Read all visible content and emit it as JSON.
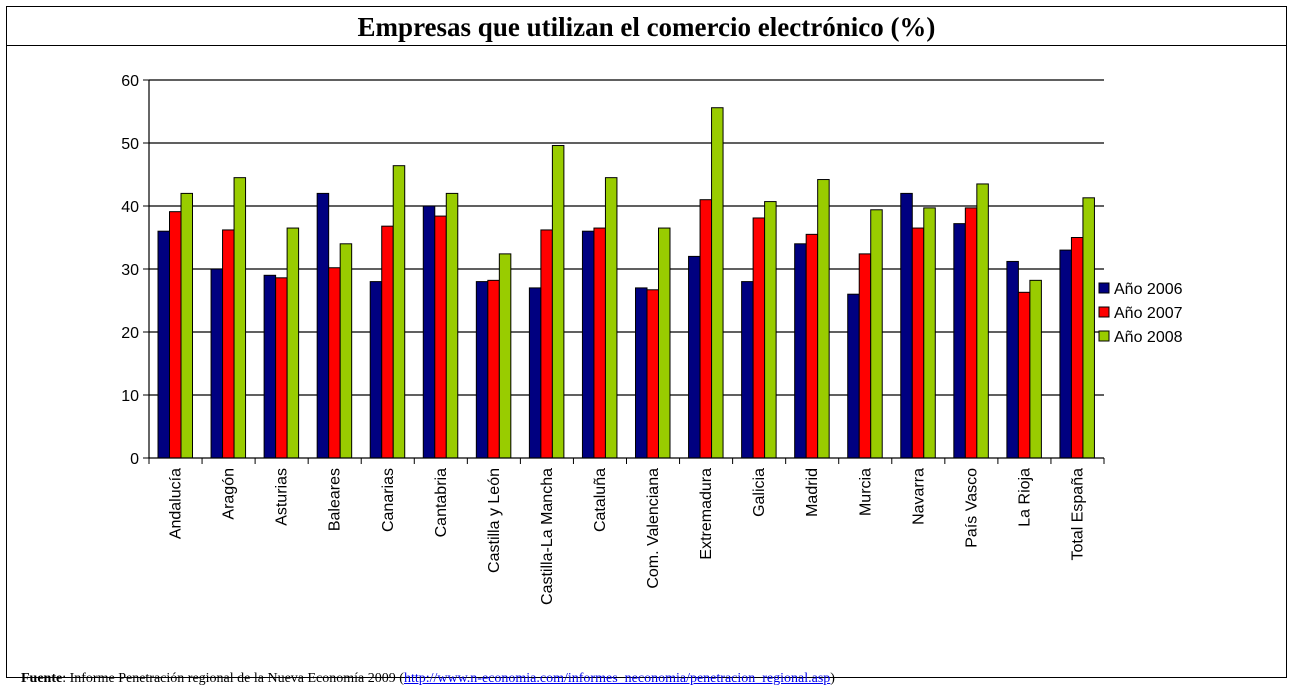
{
  "chart_data": {
    "type": "bar",
    "title": "Empresas que utilizan el comercio electrónico (%)",
    "xlabel": "",
    "ylabel": "",
    "ylim": [
      0,
      60
    ],
    "yticks": [
      0,
      10,
      20,
      30,
      40,
      50,
      60
    ],
    "grid": true,
    "legend_position": "right",
    "categories": [
      "Andalucía",
      "Aragón",
      "Asturias",
      "Baleares",
      "Canarias",
      "Cantabria",
      "Castilla y León",
      "Castilla-La Mancha",
      "Cataluña",
      "Com. Valenciana",
      "Extremadura",
      "Galicia",
      "Madrid",
      "Murcia",
      "Navarra",
      "País Vasco",
      "La Rioja",
      "Total España"
    ],
    "series": [
      {
        "name": "Año 2006",
        "color": "#000080",
        "values": [
          36,
          30,
          29,
          42,
          28,
          40,
          28,
          27,
          36,
          27,
          32,
          28,
          34,
          26,
          42,
          37.2,
          31.2,
          33
        ]
      },
      {
        "name": "Año 2007",
        "color": "#ff0000",
        "values": [
          39.1,
          36.2,
          28.6,
          30.2,
          36.8,
          38.4,
          28.2,
          36.2,
          36.5,
          26.7,
          41,
          38.1,
          35.5,
          32.4,
          36.5,
          39.7,
          26.3,
          35
        ]
      },
      {
        "name": "Año 2008",
        "color": "#99cc00",
        "values": [
          42,
          44.5,
          36.5,
          34,
          46.4,
          42,
          32.4,
          49.6,
          44.5,
          36.5,
          55.6,
          40.7,
          44.2,
          39.4,
          39.7,
          43.5,
          28.2,
          41.3
        ]
      }
    ]
  },
  "footer": {
    "source_label": "Fuente",
    "source_text": ": Informe Penetración regional de la Nueva Economía 2009 (",
    "source_url": "http://www.n-economia.com/informes_neconomia/penetracion_regional.asp",
    "source_close": ")"
  }
}
